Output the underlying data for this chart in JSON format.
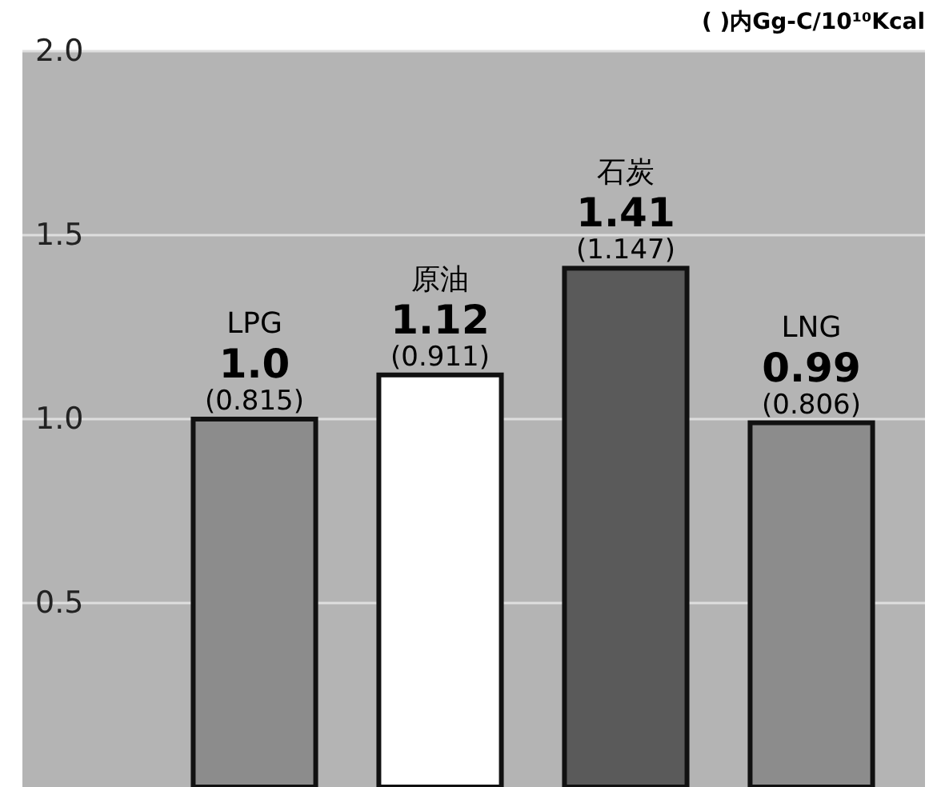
{
  "chart_data": {
    "type": "bar",
    "subtitle": "( )内Gg-C/10¹⁰Kcal",
    "categories": [
      "LPG",
      "原油",
      "石炭",
      "LNG"
    ],
    "values": [
      1.0,
      1.12,
      1.41,
      0.99
    ],
    "colors": [
      "#8c8c8c",
      "#ffffff",
      "#5a5a5a",
      "#8c8c8c"
    ],
    "value_labels": [
      "1.0",
      "1.12",
      "1.41",
      "0.99"
    ],
    "annotations": [
      {
        "text": "(0.815)",
        "x": "LPG",
        "y": 1.0
      },
      {
        "text": "(0.911)",
        "x": "原油",
        "y": 1.12
      },
      {
        "text": "(1.147)",
        "x": "石炭",
        "y": 1.41
      },
      {
        "text": "(0.806)",
        "x": "LNG",
        "y": 0.99
      }
    ],
    "ylim": [
      0,
      2.0
    ],
    "yticks": [
      {
        "value": 0.5,
        "label": "0.5"
      },
      {
        "value": 1,
        "label": "1.0"
      },
      {
        "value": 1.5,
        "label": "1.5"
      },
      {
        "value": 2,
        "label": "2.0"
      }
    ],
    "grid": "y"
  }
}
